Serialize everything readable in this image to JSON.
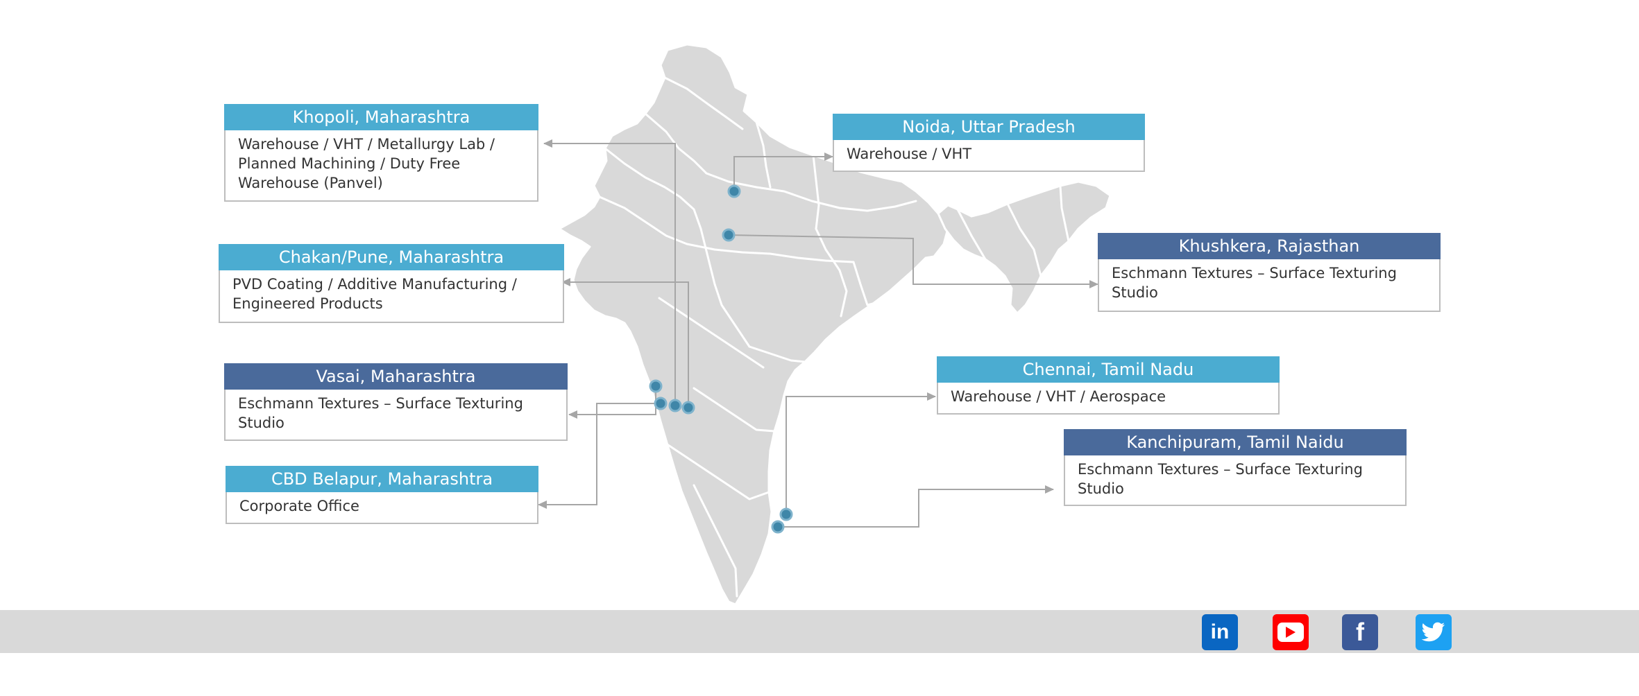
{
  "locations": [
    {
      "title": "Khopoli, Maharashtra",
      "description": "Warehouse / VHT  / Metallurgy Lab / Planned  Machining / Duty Free Warehouse (Panvel)",
      "title_color": "#4bacd1"
    },
    {
      "title": "Chakan/Pune, Maharashtra",
      "description": "PVD Coating / Additive Manufacturing / Engineered Products",
      "title_color": "#4bacd1"
    },
    {
      "title": "Vasai, Maharashtra",
      "description": "Eschmann Textures – Surface Texturing Studio",
      "title_color": "#4a6a9b"
    },
    {
      "title": "CBD Belapur, Maharashtra",
      "description": "Corporate Office",
      "title_color": "#4bacd1"
    },
    {
      "title": "Noida, Uttar Pradesh",
      "description": "Warehouse / VHT",
      "title_color": "#4bacd1"
    },
    {
      "title": "Khushkera, Rajasthan",
      "description": "Eschmann Textures – Surface Texturing Studio",
      "title_color": "#4a6a9b"
    },
    {
      "title": "Chennai, Tamil Nadu",
      "description": "Warehouse / VHT / Aerospace",
      "title_color": "#4bacd1"
    },
    {
      "title": "Kanchipuram, Tamil Naidu",
      "description": "Eschmann Textures – Surface Texturing Studio",
      "title_color": "#4a6a9b"
    }
  ],
  "map": {
    "land_color": "#d9d9d9",
    "border_color": "#ffffff",
    "marker_color": "#3f86a8",
    "connector_color": "#a6a6a6"
  },
  "social": [
    {
      "icon": "linkedin-icon",
      "glyph": "in",
      "color": "#0a66c2"
    },
    {
      "icon": "youtube-icon",
      "glyph": "▶",
      "color": "#ff0000"
    },
    {
      "icon": "facebook-icon",
      "glyph": "f",
      "color": "#3b5998"
    },
    {
      "icon": "twitter-icon",
      "glyph": "🐦",
      "color": "#1da1f2"
    }
  ]
}
